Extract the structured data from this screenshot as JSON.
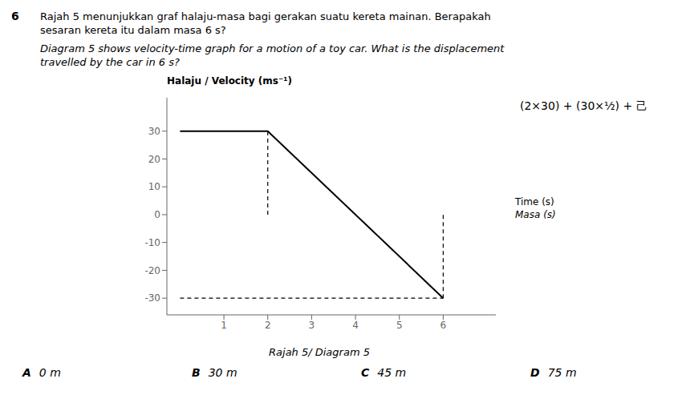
{
  "chart_data": {
    "type": "line",
    "title": "Rajah 5 menunjukkan graf halaju-masa bagi gerakan suatu kereta mainan. Berapakah\nsesaran kereta itu dalam masa 6 s?",
    "subtitle": "Diagram 5 shows velocity-time graph for a motion of a toy car. What is the displacement\ntravelled by the car in 6 s?",
    "y_label": "Halaju / Velocity (ms⁻¹)",
    "x_label": [
      "Time (s)",
      "Masa (s)"
    ],
    "x": [
      0,
      2,
      6
    ],
    "values": [
      30,
      30,
      -30
    ],
    "color": "#000000",
    "xlim": [
      -0.3,
      7.2
    ],
    "ylim": [
      -36,
      42
    ],
    "xticks": [
      1,
      2,
      3,
      4,
      5,
      6
    ],
    "yticks": [
      -30,
      -20,
      -10,
      0,
      10,
      20,
      30
    ],
    "guide_lines": [
      {
        "x": [
          0,
          6
        ],
        "y": [
          -30,
          -30
        ],
        "line_style": "dashed"
      },
      {
        "x": [
          2,
          2
        ],
        "y": [
          0,
          30
        ],
        "line_style": "dashed"
      },
      {
        "x": [
          6,
          6
        ],
        "y": [
          -30,
          0
        ],
        "line_style": "dashed"
      }
    ],
    "annotations": {
      "question_number": "6",
      "formula": "(2×30) + (30×¹⁄₂) + 己",
      "caption": "Rajah 5/ Diagram 5",
      "choices": [
        {
          "letter": "A",
          "value": "0 m"
        },
        {
          "letter": "B",
          "value": "30 m"
        },
        {
          "letter": "C",
          "value": "45 m"
        },
        {
          "letter": "D",
          "value": "75 m"
        }
      ]
    }
  }
}
